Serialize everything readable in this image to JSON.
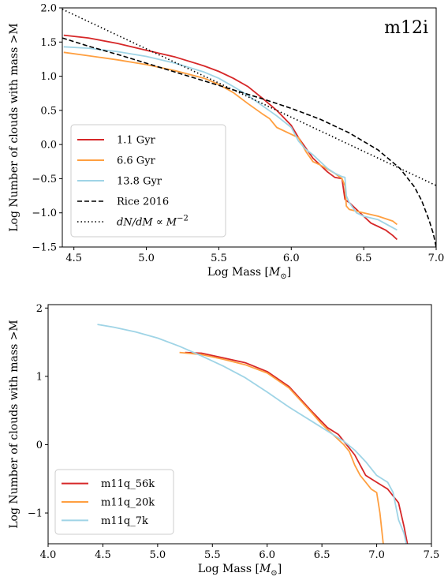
{
  "chart_data": [
    {
      "type": "line",
      "title": "m12i",
      "xlabel": "Log Mass [M⊙]",
      "ylabel": "Log Number of clouds with mass >M",
      "xlim": [
        4.42,
        7.0
      ],
      "ylim": [
        -1.5,
        2.0
      ],
      "xticks": [
        4.5,
        5.0,
        5.5,
        6.0,
        6.5,
        7.0
      ],
      "xtick_labels": [
        "4.5",
        "5.0",
        "5.5",
        "6.0",
        "6.5",
        "7.0"
      ],
      "yticks": [
        -1.5,
        -1.0,
        -0.5,
        0.0,
        0.5,
        1.0,
        1.5,
        2.0
      ],
      "ytick_labels": [
        "−1.5",
        "−1.0",
        "−0.5",
        "0.0",
        "0.5",
        "1.0",
        "1.5",
        "2.0"
      ],
      "legend_position": "lower-left",
      "grid": false,
      "series": [
        {
          "name": "1.1 Gyr",
          "color": "#d62728",
          "dash": "solid",
          "x": [
            4.43,
            4.6,
            4.8,
            5.0,
            5.2,
            5.4,
            5.5,
            5.6,
            5.7,
            5.8,
            5.9,
            6.0,
            6.05,
            6.1,
            6.15,
            6.2,
            6.25,
            6.3,
            6.35,
            6.37,
            6.38,
            6.4,
            6.45,
            6.5,
            6.55,
            6.6,
            6.65,
            6.7,
            6.73
          ],
          "y": [
            1.6,
            1.56,
            1.48,
            1.38,
            1.28,
            1.15,
            1.07,
            0.97,
            0.85,
            0.68,
            0.5,
            0.28,
            0.1,
            -0.05,
            -0.2,
            -0.3,
            -0.4,
            -0.48,
            -0.5,
            -0.8,
            -0.82,
            -0.85,
            -0.95,
            -1.05,
            -1.15,
            -1.2,
            -1.25,
            -1.33,
            -1.39
          ]
        },
        {
          "name": "6.6 Gyr",
          "color": "#ff9f40",
          "dash": "solid",
          "x": [
            4.43,
            4.6,
            4.8,
            5.0,
            5.2,
            5.4,
            5.5,
            5.6,
            5.7,
            5.8,
            5.85,
            5.9,
            6.0,
            6.05,
            6.1,
            6.15,
            6.2,
            6.3,
            6.35,
            6.37,
            6.38,
            6.4,
            6.5,
            6.6,
            6.7,
            6.73
          ],
          "y": [
            1.35,
            1.3,
            1.24,
            1.17,
            1.08,
            0.97,
            0.88,
            0.76,
            0.6,
            0.45,
            0.38,
            0.25,
            0.15,
            0.1,
            -0.1,
            -0.25,
            -0.3,
            -0.42,
            -0.5,
            -0.6,
            -0.9,
            -0.95,
            -1.0,
            -1.05,
            -1.12,
            -1.17
          ]
        },
        {
          "name": "13.8 Gyr",
          "color": "#9fd4e6",
          "dash": "solid",
          "x": [
            4.43,
            4.6,
            4.8,
            5.0,
            5.2,
            5.4,
            5.5,
            5.6,
            5.7,
            5.8,
            5.9,
            6.0,
            6.05,
            6.1,
            6.15,
            6.2,
            6.25,
            6.3,
            6.35,
            6.37,
            6.38,
            6.4,
            6.45,
            6.5,
            6.6,
            6.73
          ],
          "y": [
            1.43,
            1.41,
            1.36,
            1.29,
            1.19,
            1.06,
            0.97,
            0.85,
            0.72,
            0.57,
            0.42,
            0.25,
            0.05,
            -0.07,
            -0.15,
            -0.25,
            -0.35,
            -0.42,
            -0.47,
            -0.48,
            -0.75,
            -0.85,
            -1.0,
            -1.05,
            -1.1,
            -1.25
          ]
        },
        {
          "name": "Rice 2016",
          "color": "#000000",
          "dash": "dashed",
          "x": [
            4.42,
            4.6,
            4.8,
            5.0,
            5.2,
            5.4,
            5.6,
            5.8,
            6.0,
            6.2,
            6.4,
            6.6,
            6.75,
            6.85,
            6.9,
            6.95,
            6.98,
            7.0
          ],
          "y": [
            1.56,
            1.44,
            1.32,
            1.19,
            1.06,
            0.93,
            0.8,
            0.67,
            0.53,
            0.37,
            0.17,
            -0.08,
            -0.35,
            -0.62,
            -0.82,
            -1.1,
            -1.3,
            -1.5
          ]
        },
        {
          "name": "dN/dM ∝ M^-2",
          "color": "#000000",
          "dash": "dotted",
          "x": [
            4.42,
            7.0
          ],
          "y": [
            1.98,
            -0.6
          ]
        }
      ]
    },
    {
      "type": "line",
      "title": "",
      "xlabel": "Log Mass [M⊙]",
      "ylabel": "Log Number of clouds with mass >M",
      "xlim": [
        4.0,
        7.5
      ],
      "ylim": [
        -1.45,
        2.05
      ],
      "xticks": [
        4.0,
        4.5,
        5.0,
        5.5,
        6.0,
        6.5,
        7.0,
        7.5
      ],
      "xtick_labels": [
        "4.0",
        "4.5",
        "5.0",
        "5.5",
        "6.0",
        "6.5",
        "7.0",
        "7.5"
      ],
      "yticks": [
        -1,
        0,
        1,
        2
      ],
      "ytick_labels": [
        "−1",
        "0",
        "1",
        "2"
      ],
      "legend_position": "lower-left",
      "grid": false,
      "series": [
        {
          "name": "m11q_56k",
          "color": "#d62728",
          "dash": "solid",
          "x": [
            5.25,
            5.4,
            5.6,
            5.8,
            6.0,
            6.2,
            6.4,
            6.55,
            6.65,
            6.7,
            6.75,
            6.8,
            6.85,
            6.9,
            6.95,
            7.0,
            7.05,
            7.1,
            7.2,
            7.25,
            7.28
          ],
          "y": [
            1.35,
            1.34,
            1.27,
            1.2,
            1.07,
            0.85,
            0.5,
            0.25,
            0.15,
            0.05,
            -0.05,
            -0.15,
            -0.3,
            -0.45,
            -0.5,
            -0.55,
            -0.6,
            -0.65,
            -0.85,
            -1.2,
            -1.45
          ]
        },
        {
          "name": "m11q_20k",
          "color": "#ff9f40",
          "dash": "solid",
          "x": [
            5.2,
            5.4,
            5.6,
            5.8,
            6.0,
            6.2,
            6.4,
            6.5,
            6.6,
            6.7,
            6.75,
            6.8,
            6.85,
            6.9,
            6.95,
            7.0,
            7.03,
            7.06
          ],
          "y": [
            1.35,
            1.32,
            1.25,
            1.17,
            1.05,
            0.83,
            0.48,
            0.3,
            0.15,
            0.0,
            -0.1,
            -0.3,
            -0.45,
            -0.55,
            -0.65,
            -0.7,
            -1.0,
            -1.45
          ]
        },
        {
          "name": "m11q_7k",
          "color": "#9fd4e6",
          "dash": "solid",
          "x": [
            4.45,
            4.6,
            4.8,
            5.0,
            5.2,
            5.4,
            5.6,
            5.8,
            6.0,
            6.2,
            6.4,
            6.6,
            6.7,
            6.8,
            6.9,
            7.0,
            7.1,
            7.15,
            7.2,
            7.25,
            7.27
          ],
          "y": [
            1.76,
            1.72,
            1.65,
            1.56,
            1.44,
            1.3,
            1.15,
            0.98,
            0.77,
            0.55,
            0.35,
            0.15,
            0.05,
            -0.08,
            -0.25,
            -0.45,
            -0.55,
            -0.7,
            -1.1,
            -1.3,
            -1.45
          ]
        }
      ]
    }
  ]
}
